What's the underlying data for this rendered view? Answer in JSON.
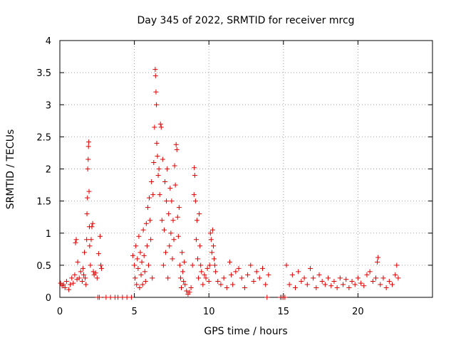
{
  "chart_data": {
    "type": "scatter",
    "title": "Day 345 of 2022, SRMTID for receiver mrcg",
    "xlabel": "GPS time / hours",
    "ylabel": "SRMTID / TECUs",
    "xlim": [
      0,
      25
    ],
    "ylim": [
      0,
      4
    ],
    "xticks": [
      0,
      5,
      10,
      15,
      20
    ],
    "xtick_labels": [
      "0",
      "5",
      "10",
      "15",
      "20"
    ],
    "yticks": [
      0,
      0.5,
      1,
      1.5,
      2,
      2.5,
      3,
      3.5,
      4
    ],
    "ytick_labels": [
      "0",
      "0.5",
      "1",
      "1.5",
      "2",
      "2.5",
      "3",
      "3.5",
      "4"
    ],
    "grid": true,
    "marker": "+",
    "color": "#e00000",
    "series": [
      {
        "name": "SRMTID",
        "points": [
          [
            0.05,
            0.22
          ],
          [
            0.15,
            0.18
          ],
          [
            0.25,
            0.2
          ],
          [
            0.35,
            0.15
          ],
          [
            0.45,
            0.25
          ],
          [
            0.6,
            0.12
          ],
          [
            0.7,
            0.2
          ],
          [
            0.8,
            0.3
          ],
          [
            0.9,
            0.22
          ],
          [
            1.0,
            0.35
          ],
          [
            1.05,
            0.85
          ],
          [
            1.1,
            0.9
          ],
          [
            1.15,
            0.28
          ],
          [
            1.2,
            0.55
          ],
          [
            1.3,
            0.3
          ],
          [
            1.4,
            0.4
          ],
          [
            1.5,
            0.25
          ],
          [
            1.55,
            0.45
          ],
          [
            1.6,
            0.35
          ],
          [
            1.65,
            0.7
          ],
          [
            1.7,
            0.3
          ],
          [
            1.75,
            0.2
          ],
          [
            1.8,
            0.9
          ],
          [
            1.82,
            1.3
          ],
          [
            1.85,
            1.55
          ],
          [
            1.87,
            2.0
          ],
          [
            1.9,
            2.15
          ],
          [
            1.92,
            2.35
          ],
          [
            1.94,
            2.42
          ],
          [
            1.96,
            1.65
          ],
          [
            1.98,
            1.1
          ],
          [
            2.0,
            0.8
          ],
          [
            2.05,
            0.5
          ],
          [
            2.1,
            0.9
          ],
          [
            2.15,
            1.1
          ],
          [
            2.2,
            1.15
          ],
          [
            2.25,
            0.4
          ],
          [
            2.3,
            0.35
          ],
          [
            2.4,
            0.38
          ],
          [
            2.5,
            0.3
          ],
          [
            2.6,
            0.68
          ],
          [
            2.7,
            0.95
          ],
          [
            2.75,
            0.5
          ],
          [
            2.8,
            0.45
          ],
          [
            2.55,
            0.0
          ],
          [
            2.65,
            0.0
          ],
          [
            3.1,
            0.0
          ],
          [
            3.4,
            0.0
          ],
          [
            3.7,
            0.0
          ],
          [
            3.9,
            0.0
          ],
          [
            4.2,
            0.0
          ],
          [
            4.5,
            0.0
          ],
          [
            4.8,
            0.0
          ],
          [
            4.9,
            0.65
          ],
          [
            5.0,
            0.5
          ],
          [
            5.05,
            0.3
          ],
          [
            5.1,
            0.8
          ],
          [
            5.15,
            0.2
          ],
          [
            5.2,
            0.6
          ],
          [
            5.25,
            0.45
          ],
          [
            5.3,
            0.95
          ],
          [
            5.35,
            0.15
          ],
          [
            5.4,
            0.7
          ],
          [
            5.45,
            0.35
          ],
          [
            5.5,
            0.55
          ],
          [
            5.55,
            0.2
          ],
          [
            5.6,
            1.05
          ],
          [
            5.65,
            0.65
          ],
          [
            5.7,
            0.4
          ],
          [
            5.75,
            0.25
          ],
          [
            5.8,
            1.15
          ],
          [
            5.85,
            0.8
          ],
          [
            5.9,
            1.4
          ],
          [
            5.95,
            0.5
          ],
          [
            6.0,
            1.55
          ],
          [
            6.05,
            1.2
          ],
          [
            6.1,
            0.9
          ],
          [
            6.15,
            1.8
          ],
          [
            6.2,
            0.3
          ],
          [
            6.25,
            1.6
          ],
          [
            6.3,
            2.1
          ],
          [
            6.35,
            2.65
          ],
          [
            6.4,
            3.55
          ],
          [
            6.42,
            3.45
          ],
          [
            6.45,
            3.2
          ],
          [
            6.48,
            3.0
          ],
          [
            6.5,
            2.4
          ],
          [
            6.55,
            2.2
          ],
          [
            6.6,
            1.9
          ],
          [
            6.65,
            2.0
          ],
          [
            6.7,
            1.6
          ],
          [
            6.75,
            2.7
          ],
          [
            6.8,
            2.65
          ],
          [
            6.85,
            1.2
          ],
          [
            6.9,
            2.15
          ],
          [
            6.95,
            0.5
          ],
          [
            7.0,
            1.05
          ],
          [
            7.05,
            1.8
          ],
          [
            7.1,
            0.7
          ],
          [
            7.15,
            1.5
          ],
          [
            7.2,
            2.0
          ],
          [
            7.25,
            0.3
          ],
          [
            7.3,
            1.3
          ],
          [
            7.35,
            0.8
          ],
          [
            7.4,
            1.7
          ],
          [
            7.45,
            1.0
          ],
          [
            7.5,
            1.5
          ],
          [
            7.55,
            0.6
          ],
          [
            7.6,
            1.2
          ],
          [
            7.65,
            0.9
          ],
          [
            7.7,
            2.05
          ],
          [
            7.75,
            1.75
          ],
          [
            7.8,
            2.38
          ],
          [
            7.85,
            2.3
          ],
          [
            7.9,
            1.25
          ],
          [
            7.95,
            0.95
          ],
          [
            8.0,
            1.4
          ],
          [
            8.05,
            0.5
          ],
          [
            8.1,
            0.3
          ],
          [
            8.15,
            0.15
          ],
          [
            8.2,
            0.7
          ],
          [
            8.25,
            0.4
          ],
          [
            8.3,
            0.25
          ],
          [
            8.35,
            0.55
          ],
          [
            8.4,
            0.2
          ],
          [
            8.5,
            0.1
          ],
          [
            8.6,
            0.05
          ],
          [
            8.7,
            0.08
          ],
          [
            8.8,
            0.15
          ],
          [
            8.9,
            0.5
          ],
          [
            9.0,
            1.6
          ],
          [
            9.02,
            2.02
          ],
          [
            9.05,
            1.9
          ],
          [
            9.1,
            1.5
          ],
          [
            9.15,
            0.9
          ],
          [
            9.2,
            1.2
          ],
          [
            9.25,
            0.6
          ],
          [
            9.3,
            0.3
          ],
          [
            9.35,
            1.3
          ],
          [
            9.4,
            0.8
          ],
          [
            9.45,
            0.5
          ],
          [
            9.5,
            0.4
          ],
          [
            9.6,
            0.2
          ],
          [
            9.7,
            0.35
          ],
          [
            9.8,
            0.3
          ],
          [
            9.9,
            0.45
          ],
          [
            10.0,
            0.25
          ],
          [
            10.05,
            0.5
          ],
          [
            10.1,
            1.0
          ],
          [
            10.15,
            0.9
          ],
          [
            10.2,
            0.7
          ],
          [
            10.25,
            1.05
          ],
          [
            10.3,
            0.8
          ],
          [
            10.35,
            0.6
          ],
          [
            10.4,
            0.5
          ],
          [
            10.45,
            0.4
          ],
          [
            10.6,
            0.25
          ],
          [
            10.8,
            0.2
          ],
          [
            11.0,
            0.3
          ],
          [
            11.2,
            0.15
          ],
          [
            11.4,
            0.55
          ],
          [
            11.5,
            0.35
          ],
          [
            11.6,
            0.2
          ],
          [
            11.8,
            0.4
          ],
          [
            12.0,
            0.45
          ],
          [
            12.2,
            0.3
          ],
          [
            12.4,
            0.15
          ],
          [
            12.6,
            0.35
          ],
          [
            12.8,
            0.5
          ],
          [
            13.0,
            0.25
          ],
          [
            13.2,
            0.4
          ],
          [
            13.4,
            0.3
          ],
          [
            13.6,
            0.45
          ],
          [
            13.8,
            0.2
          ],
          [
            14.0,
            0.35
          ],
          [
            13.9,
            0.0
          ],
          [
            14.8,
            0.0
          ],
          [
            14.9,
            0.0
          ],
          [
            15.0,
            0.0
          ],
          [
            15.1,
            0.0
          ],
          [
            15.2,
            0.5
          ],
          [
            15.4,
            0.2
          ],
          [
            15.6,
            0.35
          ],
          [
            15.8,
            0.15
          ],
          [
            16.0,
            0.4
          ],
          [
            16.2,
            0.25
          ],
          [
            16.4,
            0.3
          ],
          [
            16.6,
            0.2
          ],
          [
            16.8,
            0.45
          ],
          [
            17.0,
            0.3
          ],
          [
            17.2,
            0.15
          ],
          [
            17.4,
            0.35
          ],
          [
            17.6,
            0.25
          ],
          [
            17.8,
            0.2
          ],
          [
            18.0,
            0.3
          ],
          [
            18.2,
            0.18
          ],
          [
            18.4,
            0.25
          ],
          [
            18.6,
            0.15
          ],
          [
            18.8,
            0.3
          ],
          [
            19.0,
            0.2
          ],
          [
            19.2,
            0.28
          ],
          [
            19.4,
            0.15
          ],
          [
            19.6,
            0.25
          ],
          [
            19.8,
            0.2
          ],
          [
            20.0,
            0.3
          ],
          [
            20.2,
            0.22
          ],
          [
            20.4,
            0.18
          ],
          [
            20.6,
            0.35
          ],
          [
            20.8,
            0.4
          ],
          [
            21.0,
            0.25
          ],
          [
            21.2,
            0.3
          ],
          [
            21.3,
            0.55
          ],
          [
            21.35,
            0.62
          ],
          [
            21.5,
            0.2
          ],
          [
            21.7,
            0.3
          ],
          [
            21.9,
            0.15
          ],
          [
            22.1,
            0.25
          ],
          [
            22.3,
            0.2
          ],
          [
            22.5,
            0.35
          ],
          [
            22.6,
            0.5
          ],
          [
            22.7,
            0.3
          ]
        ]
      }
    ]
  }
}
